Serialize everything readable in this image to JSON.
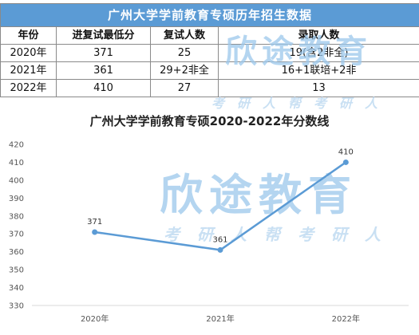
{
  "table": {
    "title": "广州大学学前教育专硕历年招生数据",
    "headers": [
      "年份",
      "进复试最低分",
      "复试人数",
      "录取人数"
    ],
    "rows": [
      [
        "2020年",
        "371",
        "25",
        "19(含2非全)"
      ],
      [
        "2021年",
        "361",
        "29+2非全",
        "16+1联培+2非"
      ],
      [
        "2022年",
        "410",
        "27",
        "13"
      ]
    ]
  },
  "watermark": {
    "brand": "欣途教育",
    "slogan": "考研人帮考研人"
  },
  "colors": {
    "accent": "#5b9bd5",
    "line": "#5b9bd5"
  },
  "chart_data": {
    "type": "line",
    "title": "广州大学学前教育专硕2020-2022年分数线",
    "categories": [
      "2020年",
      "2021年",
      "2022年"
    ],
    "values": [
      371,
      361,
      410
    ],
    "ylim": [
      330,
      420
    ],
    "yticks": [
      330,
      340,
      350,
      360,
      370,
      380,
      390,
      400,
      410,
      420
    ],
    "grid": false,
    "data_labels": true
  }
}
